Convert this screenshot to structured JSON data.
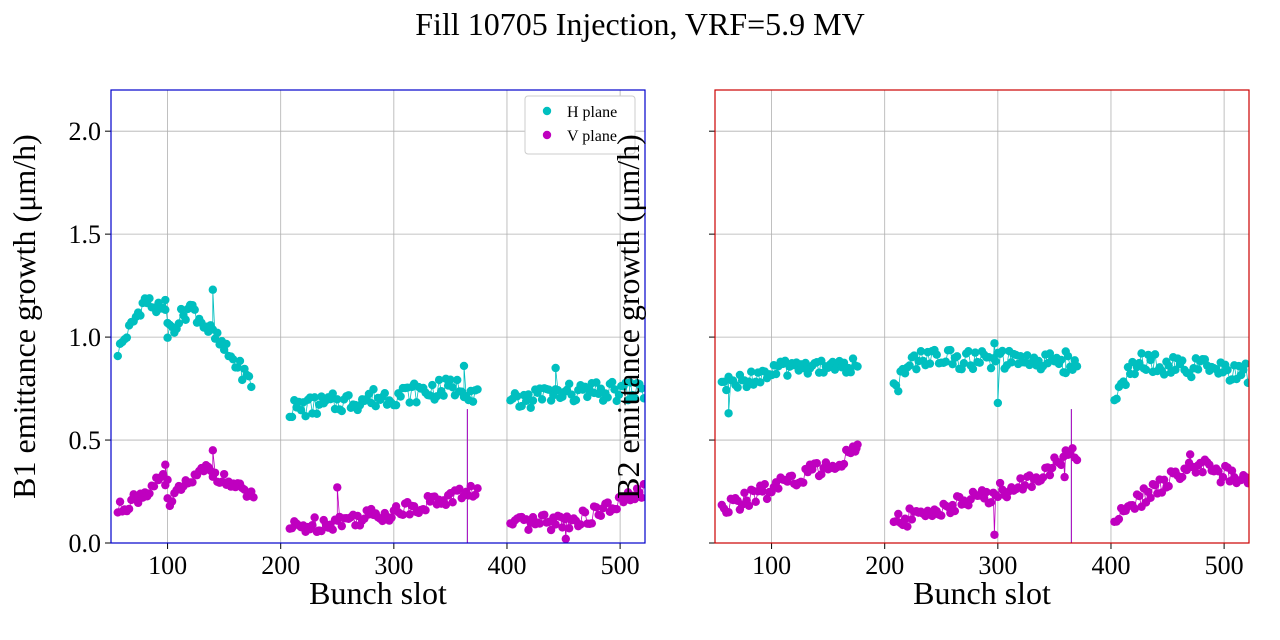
{
  "figure": {
    "title": "Fill 10705 Injection, VRF=5.9 MV"
  },
  "chart_data": [
    {
      "id": "b1",
      "type": "scatter",
      "frame_color": "#0000cc",
      "xlabel": "Bunch slot",
      "ylabel": "B1 emittance growth (μm/h)",
      "xlim": [
        50,
        522
      ],
      "ylim": [
        0,
        2.2
      ],
      "xticks": [
        100,
        200,
        300,
        400,
        500
      ],
      "yticks": [
        0.0,
        0.5,
        1.0,
        1.5,
        2.0
      ],
      "ytick_labels": [
        "0.0",
        "0.5",
        "1.0",
        "1.5",
        "2.0"
      ],
      "show_ytick_labels": true,
      "grid": true,
      "legend": {
        "placement": "top-right",
        "entries": [
          "H plane",
          "V plane"
        ]
      },
      "series": [
        {
          "name": "H plane",
          "color": "#00bfbf",
          "segments": [
            {
              "x_start": 56,
              "x_end": 100,
              "y_start": 0.93,
              "y_end": 1.1,
              "peak_x": 80,
              "peak_y": 1.18,
              "amp": 0.035,
              "step": 2
            },
            {
              "x_start": 100,
              "x_end": 175,
              "y_start": 1.02,
              "y_end": 0.77,
              "peak_x": 120,
              "peak_y": 1.15,
              "amp": 0.04,
              "step": 2
            },
            {
              "x_start": 208,
              "x_end": 375,
              "y_start": 0.65,
              "y_end": 0.72,
              "peak_x": 360,
              "peak_y": 0.76,
              "amp": 0.05,
              "step": 2
            },
            {
              "x_start": 403,
              "x_end": 522,
              "y_start": 0.67,
              "y_end": 0.74,
              "peak_x": 430,
              "peak_y": 0.72,
              "amp": 0.05,
              "step": 2
            }
          ],
          "extra_points": [
            [
              140,
              1.23
            ],
            [
              362,
              0.86
            ],
            [
              443,
              0.85
            ],
            [
              98,
              1.18
            ]
          ],
          "spike": {
            "x": 365,
            "y": 0.0
          }
        },
        {
          "name": "V plane",
          "color": "#bf00bf",
          "segments": [
            {
              "x_start": 56,
              "x_end": 100,
              "y_start": 0.16,
              "y_end": 0.3,
              "peak_x": 95,
              "peak_y": 0.3,
              "amp": 0.035,
              "step": 2
            },
            {
              "x_start": 100,
              "x_end": 176,
              "y_start": 0.2,
              "y_end": 0.22,
              "peak_x": 134,
              "peak_y": 0.36,
              "amp": 0.03,
              "step": 2
            },
            {
              "x_start": 208,
              "x_end": 375,
              "y_start": 0.07,
              "y_end": 0.26,
              "peak_x": 300,
              "peak_y": 0.15,
              "amp": 0.04,
              "step": 2
            },
            {
              "x_start": 403,
              "x_end": 522,
              "y_start": 0.08,
              "y_end": 0.25,
              "peak_x": 470,
              "peak_y": 0.12,
              "amp": 0.04,
              "step": 2
            }
          ],
          "extra_points": [
            [
              140,
              0.45
            ],
            [
              98,
              0.38
            ],
            [
              250,
              0.27
            ],
            [
              452,
              0.02
            ]
          ],
          "spike": {
            "x": 365,
            "y": 0.0
          }
        }
      ]
    },
    {
      "id": "b2",
      "type": "scatter",
      "frame_color": "#cc0000",
      "xlabel": "Bunch slot",
      "ylabel": "B2 emittance growth (μm/h)",
      "xlim": [
        50,
        522
      ],
      "ylim": [
        0,
        2.2
      ],
      "xticks": [
        100,
        200,
        300,
        400,
        500
      ],
      "yticks": [
        0.0,
        0.5,
        1.0,
        1.5,
        2.0
      ],
      "ytick_labels": [
        "0.0",
        "0.5",
        "1.0",
        "1.5",
        "2.0"
      ],
      "show_ytick_labels": false,
      "grid": true,
      "legend": null,
      "series": [
        {
          "name": "H plane",
          "color": "#00bfbf",
          "segments": [
            {
              "x_start": 56,
              "x_end": 176,
              "y_start": 0.76,
              "y_end": 0.86,
              "peak_x": 120,
              "peak_y": 0.86,
              "amp": 0.04,
              "step": 2
            },
            {
              "x_start": 208,
              "x_end": 370,
              "y_start": 0.76,
              "y_end": 0.87,
              "peak_x": 230,
              "peak_y": 0.9,
              "amp": 0.05,
              "step": 2
            },
            {
              "x_start": 403,
              "x_end": 522,
              "y_start": 0.72,
              "y_end": 0.82,
              "peak_x": 425,
              "peak_y": 0.88,
              "amp": 0.05,
              "step": 2
            }
          ],
          "extra_points": [
            [
              297,
              0.97
            ],
            [
              62,
              0.63
            ],
            [
              300,
              0.68
            ],
            [
              360,
              0.93
            ]
          ],
          "spike": {
            "x": 365,
            "y": 0.0
          }
        },
        {
          "name": "V plane",
          "color": "#bf00bf",
          "segments": [
            {
              "x_start": 56,
              "x_end": 176,
              "y_start": 0.16,
              "y_end": 0.44,
              "peak_x": 175,
              "peak_y": 0.44,
              "amp": 0.04,
              "step": 2
            },
            {
              "x_start": 208,
              "x_end": 370,
              "y_start": 0.1,
              "y_end": 0.44,
              "peak_x": 320,
              "peak_y": 0.28,
              "amp": 0.045,
              "step": 2
            },
            {
              "x_start": 403,
              "x_end": 522,
              "y_start": 0.12,
              "y_end": 0.3,
              "peak_x": 470,
              "peak_y": 0.38,
              "amp": 0.045,
              "step": 2
            }
          ],
          "extra_points": [
            [
              297,
              0.04
            ],
            [
              470,
              0.43
            ],
            [
              359,
              0.32
            ],
            [
              175,
              0.46
            ]
          ],
          "spike": {
            "x": 365,
            "y": 0.0
          }
        }
      ]
    }
  ]
}
